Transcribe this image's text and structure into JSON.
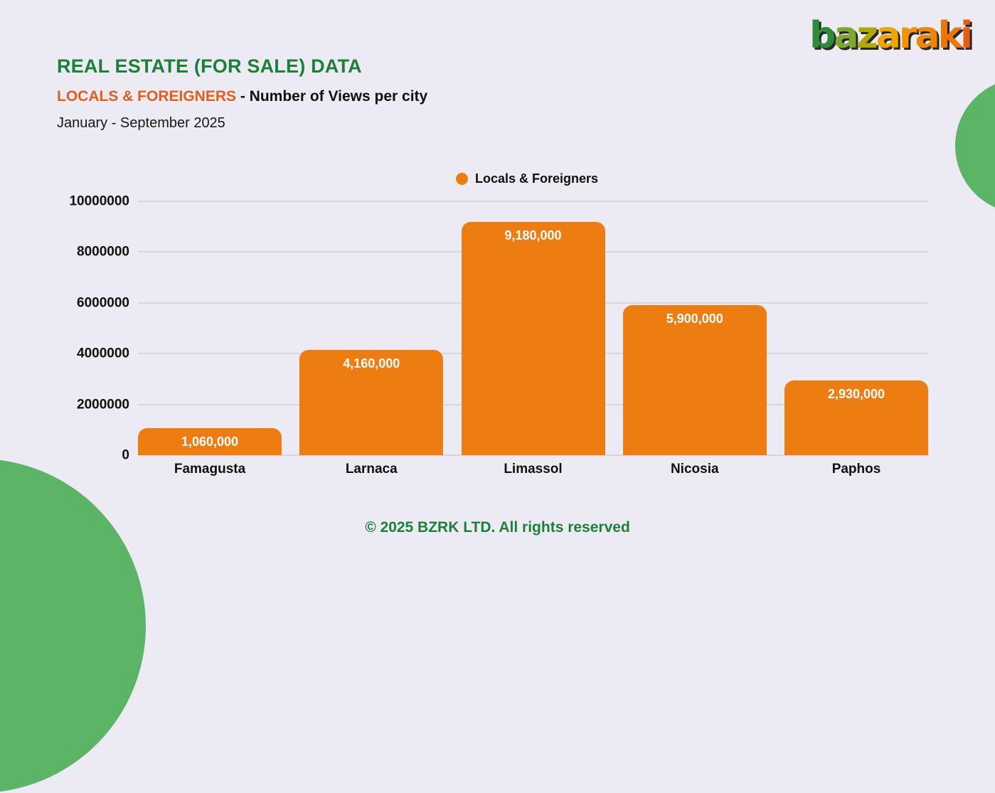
{
  "brand": {
    "logo_letters": [
      {
        "char": "b",
        "color": "#2E8B39"
      },
      {
        "char": "a",
        "color": "#7FA82B"
      },
      {
        "char": "z",
        "color": "#B3A800"
      },
      {
        "char": "a",
        "color": "#EFA700"
      },
      {
        "char": "r",
        "color": "#F29300"
      },
      {
        "char": "a",
        "color": "#EF8500"
      },
      {
        "char": "k",
        "color": "#EE7608"
      },
      {
        "char": "i",
        "color": "#E95C0E"
      }
    ]
  },
  "header": {
    "title": "REAL ESTATE (FOR SALE) DATA",
    "subtitle_highlight": "LOCALS & FOREIGNERS",
    "subtitle_rest": " - Number of Views per city",
    "period": "January - September 2025"
  },
  "legend": {
    "label": "Locals & Foreigners",
    "marker_color": "#EE7D11"
  },
  "chart_data": {
    "type": "bar",
    "title": "LOCALS & FOREIGNERS - Number of Views per city",
    "series_name": "Locals & Foreigners",
    "categories": [
      "Famagusta",
      "Larnaca",
      "Limassol",
      "Nicosia",
      "Paphos"
    ],
    "values": [
      1060000,
      4160000,
      9180000,
      5900000,
      2930000
    ],
    "value_labels": [
      "1,060,000",
      "4,160,000",
      "9,180,000",
      "5,900,000",
      "2,930,000"
    ],
    "xlabel": "",
    "ylabel": "",
    "ylim": [
      0,
      10000000
    ],
    "ytick_values": [
      0,
      2000000,
      4000000,
      6000000,
      8000000,
      10000000
    ],
    "ytick_labels": [
      "0",
      "2000000",
      "4000000",
      "6000000",
      "8000000",
      "10000000"
    ],
    "grid": true,
    "legend_position": "top-center",
    "bar_color": "#EE7D11"
  },
  "footer": {
    "copyright": "© 2025 BZRK LTD. All rights reserved"
  },
  "colors": {
    "background": "#ECEBF3",
    "bar_orange": "#EE7D11",
    "title_green": "#1B8038",
    "subtitle_orange": "#E65C19",
    "decor_circle_green": "#5CB567",
    "grid_line": "#D7D6DE",
    "text_dark": "#101010",
    "bar_value_text": "#FFFFFF"
  }
}
